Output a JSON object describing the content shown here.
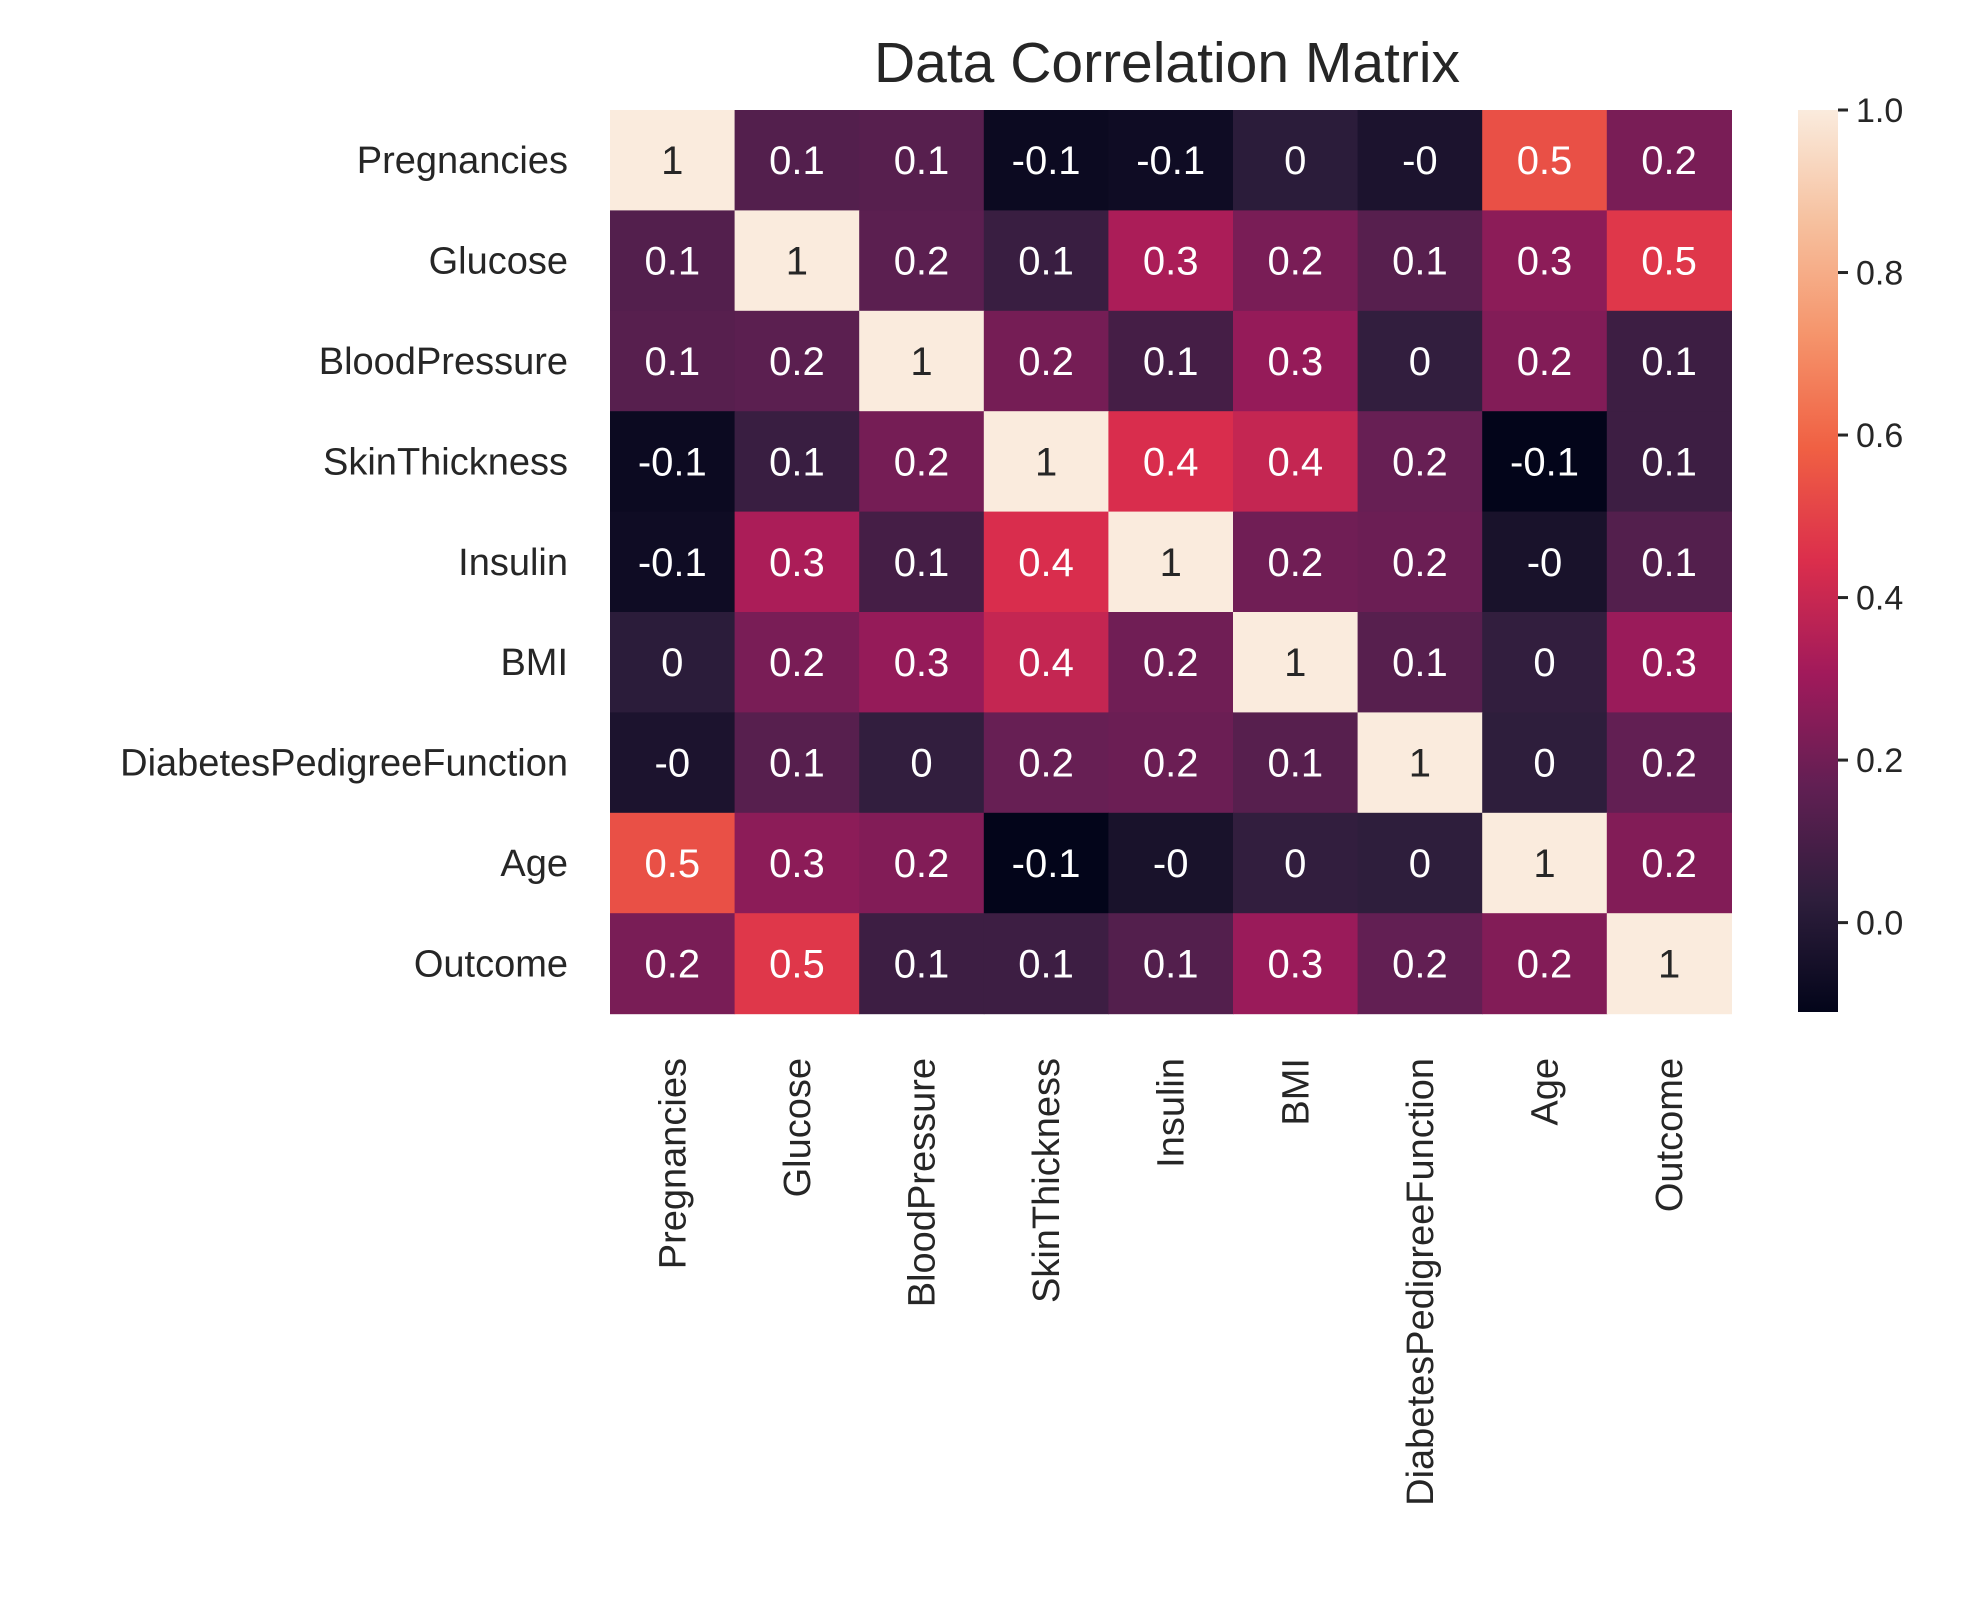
{
  "chart_data": {
    "type": "heatmap",
    "title": "Data Correlation Matrix",
    "xlabel": "",
    "ylabel": "",
    "rows": [
      "Pregnancies",
      "Glucose",
      "BloodPressure",
      "SkinThickness",
      "Insulin",
      "BMI",
      "DiabetesPedigreeFunction",
      "Age",
      "Outcome"
    ],
    "columns": [
      "Pregnancies",
      "Glucose",
      "BloodPressure",
      "SkinThickness",
      "Insulin",
      "BMI",
      "DiabetesPedigreeFunction",
      "Age",
      "Outcome"
    ],
    "values": [
      [
        1,
        0.13,
        0.14,
        -0.08,
        -0.07,
        0.02,
        -0.03,
        0.54,
        0.22
      ],
      [
        0.13,
        1,
        0.15,
        0.06,
        0.33,
        0.22,
        0.14,
        0.26,
        0.47
      ],
      [
        0.14,
        0.15,
        1,
        0.21,
        0.09,
        0.28,
        0.04,
        0.24,
        0.07
      ],
      [
        -0.08,
        0.06,
        0.21,
        1,
        0.44,
        0.39,
        0.18,
        -0.11,
        0.07
      ],
      [
        -0.07,
        0.33,
        0.09,
        0.44,
        1,
        0.2,
        0.19,
        -0.04,
        0.13
      ],
      [
        0.02,
        0.22,
        0.28,
        0.39,
        0.2,
        1,
        0.14,
        0.04,
        0.29
      ],
      [
        -0.03,
        0.14,
        0.04,
        0.18,
        0.19,
        0.14,
        1,
        0.03,
        0.17
      ],
      [
        0.54,
        0.26,
        0.24,
        -0.11,
        -0.04,
        0.04,
        0.03,
        1,
        0.24
      ],
      [
        0.22,
        0.47,
        0.07,
        0.07,
        0.13,
        0.29,
        0.17,
        0.24,
        1
      ]
    ],
    "annotations": [
      [
        "1",
        "0.1",
        "0.1",
        "-0.1",
        "-0.1",
        "0",
        "-0",
        "0.5",
        "0.2"
      ],
      [
        "0.1",
        "1",
        "0.2",
        "0.1",
        "0.3",
        "0.2",
        "0.1",
        "0.3",
        "0.5"
      ],
      [
        "0.1",
        "0.2",
        "1",
        "0.2",
        "0.1",
        "0.3",
        "0",
        "0.2",
        "0.1"
      ],
      [
        "-0.1",
        "0.1",
        "0.2",
        "1",
        "0.4",
        "0.4",
        "0.2",
        "-0.1",
        "0.1"
      ],
      [
        "-0.1",
        "0.3",
        "0.1",
        "0.4",
        "1",
        "0.2",
        "0.2",
        "-0",
        "0.1"
      ],
      [
        "0",
        "0.2",
        "0.3",
        "0.4",
        "0.2",
        "1",
        "0.1",
        "0",
        "0.3"
      ],
      [
        "-0",
        "0.1",
        "0",
        "0.2",
        "0.2",
        "0.1",
        "1",
        "0",
        "0.2"
      ],
      [
        "0.5",
        "0.3",
        "0.2",
        "-0.1",
        "-0",
        "0",
        "0",
        "1",
        "0.2"
      ],
      [
        "0.2",
        "0.5",
        "0.1",
        "0.1",
        "0.1",
        "0.3",
        "0.2",
        "0.2",
        "1"
      ]
    ],
    "colorbar": {
      "range": [
        -0.11,
        1.0
      ],
      "ticks": [
        0.0,
        0.2,
        0.4,
        0.6,
        0.8,
        1.0
      ],
      "tick_labels": [
        "0.0",
        "0.2",
        "0.4",
        "0.6",
        "0.8",
        "1.0"
      ],
      "colormap": "rocket",
      "color_stops": [
        "#03051a",
        "#2e1e3c",
        "#611f53",
        "#a11a5b",
        "#db2e4c",
        "#f06043",
        "#f5946b",
        "#f6c09e",
        "#faebdd"
      ]
    },
    "grid": false,
    "legend": "colorbar-right"
  }
}
